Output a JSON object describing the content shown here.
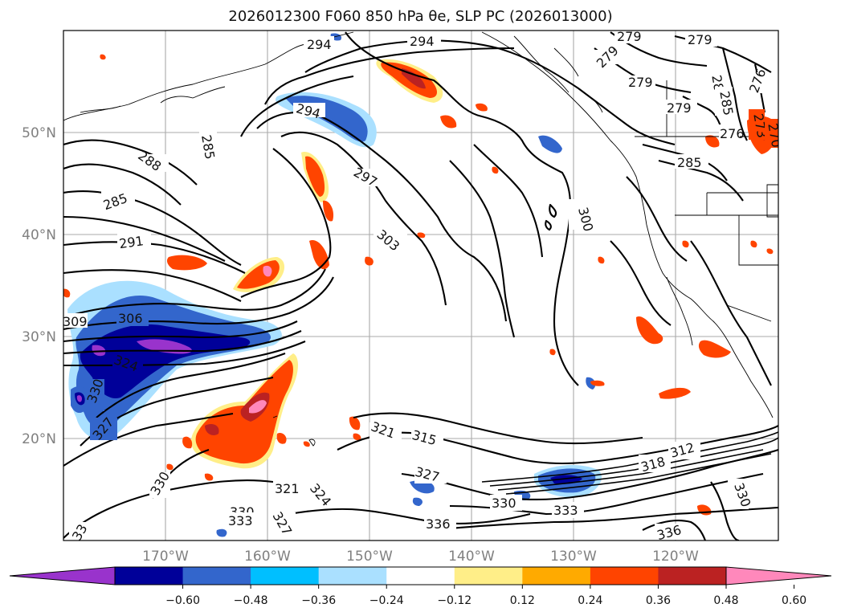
{
  "title_text": "2026012300 F060 850 hPa θe, SLP PC (2026013000)",
  "map": {
    "lat_labels": [
      "50°N",
      "40°N",
      "30°N",
      "20°N"
    ],
    "lon_labels": [
      "170°W",
      "160°W",
      "150°W",
      "140°W",
      "130°W",
      "120°W"
    ],
    "contour_labels": [
      "294",
      "294",
      "294",
      "279",
      "279",
      "279",
      "279",
      "276",
      "279",
      "285",
      "288",
      "285",
      "291",
      "297",
      "303",
      "300",
      "309",
      "306",
      "324",
      "330",
      "327",
      "330",
      "321",
      "315",
      "327",
      "330",
      "333",
      "336",
      "318",
      "312",
      "321",
      "324",
      "330",
      "333",
      "327",
      "336",
      "330",
      "33",
      "285",
      "276",
      "273",
      "270",
      "288",
      "285"
    ]
  },
  "colorbar": {
    "colors": [
      "#9933cc",
      "#000099",
      "#3366cc",
      "#00bfff",
      "#aae0ff",
      "#ffffff",
      "#ffee88",
      "#ffaa00",
      "#ff4400",
      "#bb2222",
      "#ff88bb"
    ],
    "tick_labels": [
      "−0.60",
      "−0.48",
      "−0.36",
      "−0.24",
      "−0.12",
      "0.12",
      "0.24",
      "0.36",
      "0.48",
      "0.60"
    ],
    "extend": "both"
  }
}
